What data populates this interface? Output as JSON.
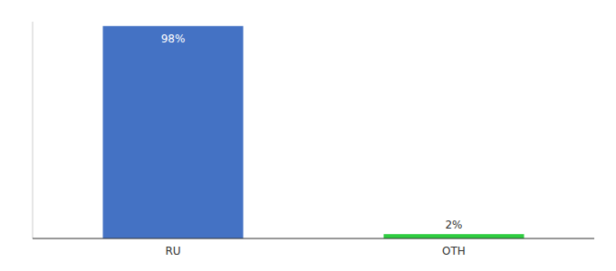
{
  "chart_data": {
    "type": "bar",
    "categories": [
      "RU",
      "OTH"
    ],
    "values": [
      98,
      2
    ],
    "value_labels": [
      "98%",
      "2%"
    ],
    "colors": [
      "#4472c4",
      "#2ecc40"
    ],
    "ylim": [
      0,
      100
    ],
    "data_labels": true,
    "tick_labels": "x",
    "grid": false
  }
}
